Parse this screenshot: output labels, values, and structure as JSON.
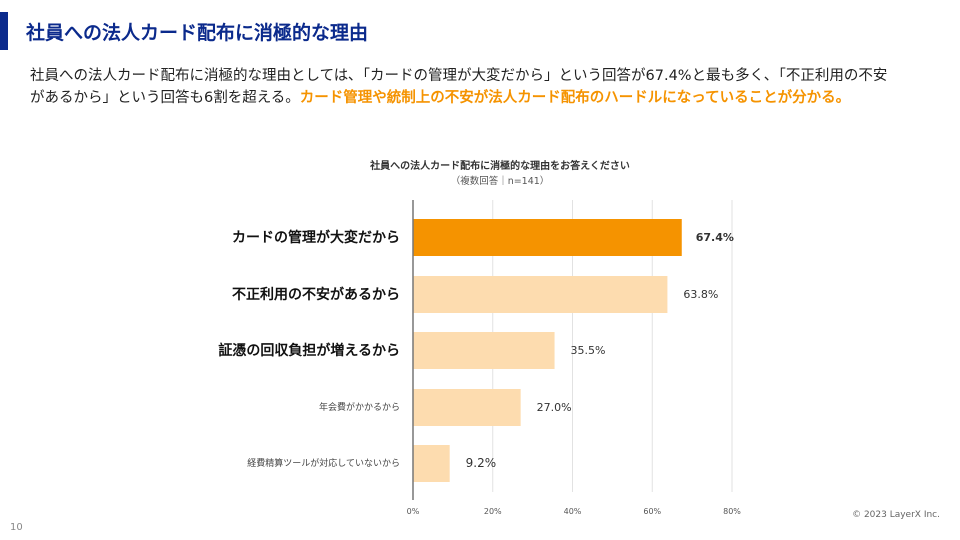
{
  "header": {
    "title": "社員への法人カード配布に消極的な理由"
  },
  "lead": {
    "text": "社員への法人カード配布に消極的な理由としては､「カードの管理が大変だから」という回答が67.4%と最も多く､「不正利用の不安があるから」という回答も6割を超える。",
    "highlight": "カード管理や統制上の不安が法人カード配布のハードルになっていることが分かる。"
  },
  "chart_data": {
    "type": "bar",
    "orientation": "horizontal",
    "title": "社員への法人カード配布に消極的な理由をお答えください",
    "subtitle": "（複数回答｜n=141）",
    "categories": [
      "カードの管理が大変だから",
      "不正利用の不安があるから",
      "証憑の回収負担が増えるから",
      "年会費がかかるから",
      "経費精算ツールが対応していないから"
    ],
    "values": [
      67.4,
      63.8,
      35.5,
      27.0,
      9.2
    ],
    "data_labels": [
      "67.4%",
      "63.8%",
      "35.5%",
      "27.0%",
      "9.2%"
    ],
    "xlim": [
      0,
      80
    ],
    "xticks": [
      "0%",
      "20%",
      "40%",
      "60%",
      "80%"
    ],
    "grid": true,
    "colors": {
      "highlight": "#f59300",
      "default": "#fddcaf"
    }
  },
  "footer": {
    "page": "10",
    "copyright": "© 2023 LayerX Inc."
  }
}
